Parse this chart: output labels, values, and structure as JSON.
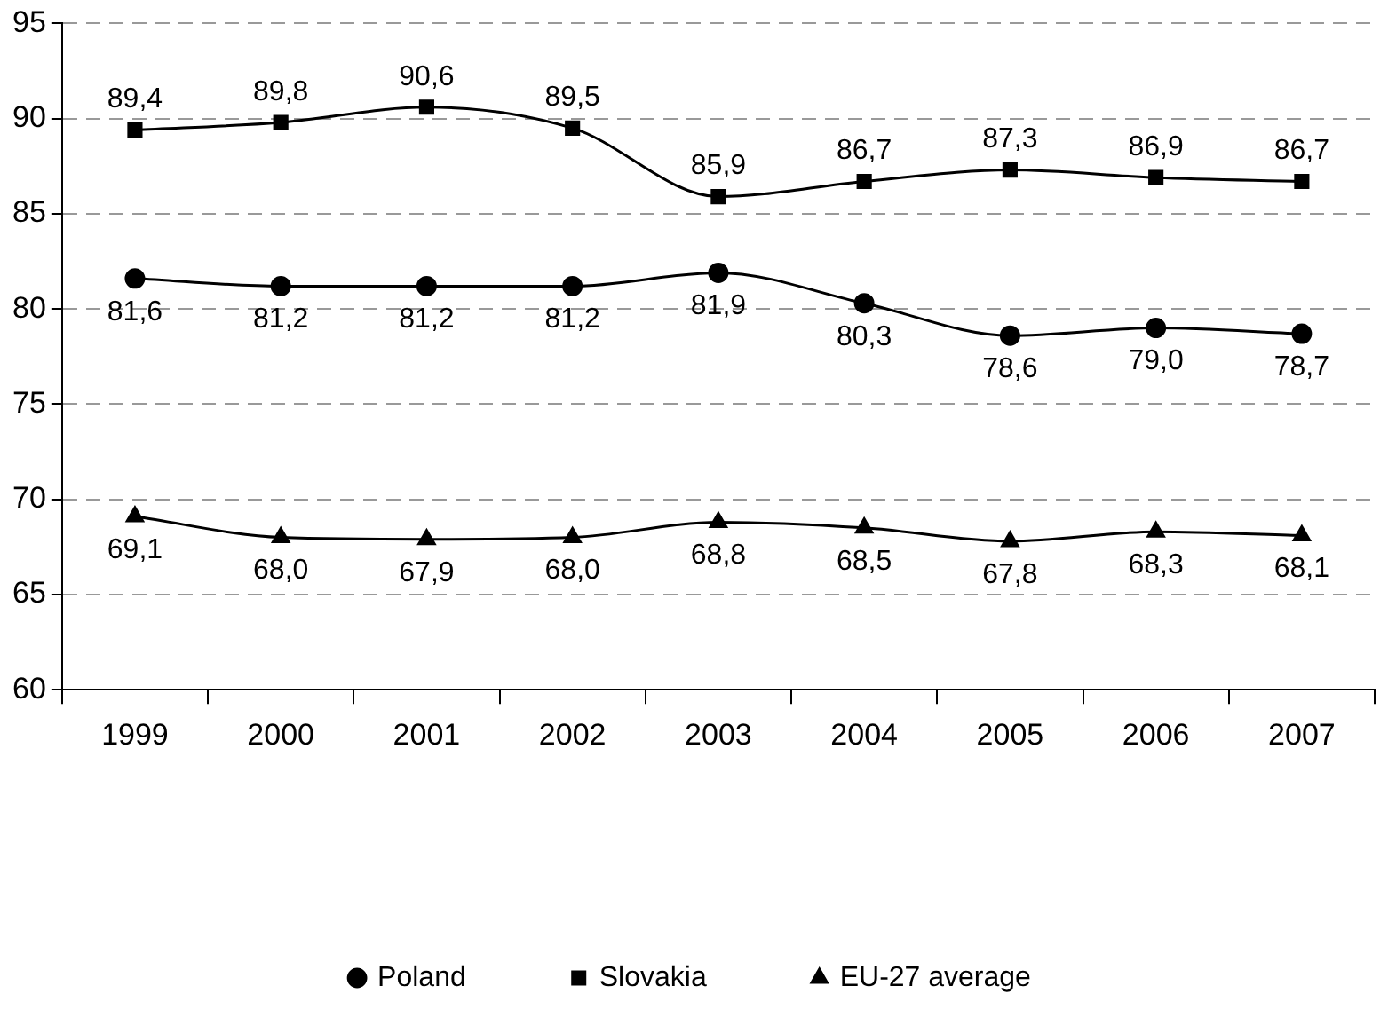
{
  "chart_data": {
    "type": "line",
    "categories": [
      "1999",
      "2000",
      "2001",
      "2002",
      "2003",
      "2004",
      "2005",
      "2006",
      "2007"
    ],
    "series": [
      {
        "name": "Poland",
        "color": "#000000",
        "marker": "circle",
        "values": [
          81.6,
          81.2,
          81.2,
          81.2,
          81.9,
          80.3,
          78.6,
          79.0,
          78.7
        ],
        "value_labels": [
          "81,6",
          "81,2",
          "81,2",
          "81,2",
          "81,9",
          "80,3",
          "78,6",
          "79,0",
          "78,7"
        ]
      },
      {
        "name": "Slovakia",
        "color": "#000000",
        "marker": "square",
        "values": [
          89.4,
          89.8,
          90.6,
          89.5,
          85.9,
          86.7,
          87.3,
          86.9,
          86.7
        ],
        "value_labels": [
          "89,4",
          "89,8",
          "90,6",
          "89,5",
          "85,9",
          "86,7",
          "87,3",
          "86,9",
          "86,7"
        ]
      },
      {
        "name": "EU-27 average",
        "color": "#000000",
        "marker": "triangle",
        "values": [
          69.1,
          68.0,
          67.9,
          68.0,
          68.8,
          68.5,
          67.8,
          68.3,
          68.1
        ],
        "value_labels": [
          "69,1",
          "68,0",
          "67,9",
          "68,0",
          "68,8",
          "68,5",
          "67,8",
          "68,3",
          "68,1"
        ]
      }
    ],
    "ylim": [
      60,
      95
    ],
    "yticks": [
      60,
      65,
      70,
      75,
      80,
      85,
      90,
      95
    ],
    "grid": "y",
    "legend": "bottom",
    "line_style": "solid"
  }
}
